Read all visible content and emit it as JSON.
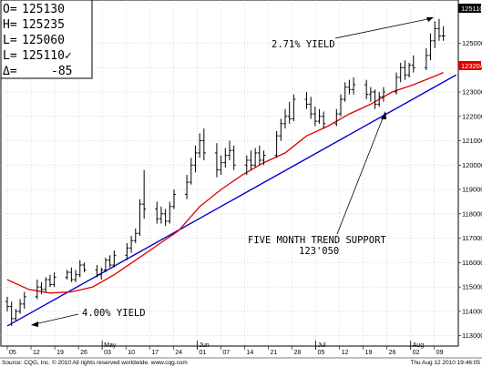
{
  "ohlc_box": [
    {
      "key": "O=",
      "value": "125130"
    },
    {
      "key": "H=",
      "value": "125235"
    },
    {
      "key": "L=",
      "value": "125060"
    },
    {
      "key": "L=",
      "value": "125110✓"
    },
    {
      "key": "Δ=",
      "value": "-85"
    }
  ],
  "footer": {
    "left": "Source: CQG, Inc. © 2010 All rights reserved worldwide. www.cqg.com",
    "right": "Thu Aug 12 2010 19:46:05"
  },
  "colors": {
    "price": "#000000",
    "moving_average": "#e00000",
    "trend_line": "#0000cc",
    "last_price_box": "#000000",
    "ma_price_box": "#e00000"
  },
  "chart_data": {
    "type": "line",
    "y_tick_labels": [
      "113000",
      "114000",
      "115000",
      "116000",
      "117000",
      "118000",
      "119000",
      "120000",
      "121000",
      "122000",
      "123000",
      "124000",
      "125000"
    ],
    "y_range": [
      112650,
      126700
    ],
    "x_tick_labels": [
      "05",
      "12",
      "19",
      "26",
      "03",
      "10",
      "17",
      "24",
      "01",
      "07",
      "14",
      "21",
      "28",
      "05",
      "12",
      "19",
      "26",
      "02",
      "09"
    ],
    "month_labels": [
      {
        "label": "May",
        "at": "03"
      },
      {
        "label": "Jun",
        "at": "01"
      },
      {
        "label": "Jul",
        "at": "05"
      },
      {
        "label": "Aug",
        "at": "02"
      }
    ],
    "last_price_label": "125110",
    "moving_average_label": "123204",
    "annotations": [
      {
        "text": "2.71% YIELD"
      },
      {
        "text": "FIVE MONTH TREND SUPPORT"
      },
      {
        "text": "123'050"
      },
      {
        "text": "4.00% YIELD"
      }
    ],
    "trend_line": {
      "start": {
        "day": 0,
        "value": 113400
      },
      "end": {
        "day": 105,
        "value": 123700
      }
    },
    "series": [
      {
        "kind": "ohlc",
        "bars": [
          [
            0,
            114400,
            114600,
            114000,
            114200
          ],
          [
            1,
            114200,
            114400,
            113400,
            113700
          ],
          [
            2,
            113700,
            114100,
            113600,
            114000
          ],
          [
            3,
            114000,
            114500,
            113900,
            114300
          ],
          [
            4,
            114300,
            114800,
            114100,
            114600
          ],
          [
            7,
            114600,
            115300,
            114500,
            115000
          ],
          [
            8,
            115000,
            115200,
            114700,
            114900
          ],
          [
            9,
            114900,
            115400,
            114800,
            115300
          ],
          [
            10,
            115300,
            115500,
            115000,
            115100
          ],
          [
            11,
            115100,
            115600,
            115000,
            115400
          ],
          [
            14,
            115400,
            115700,
            115300,
            115600
          ],
          [
            15,
            115600,
            115800,
            115200,
            115300
          ],
          [
            16,
            115300,
            115700,
            115200,
            115500
          ],
          [
            17,
            115500,
            116100,
            115400,
            115900
          ],
          [
            18,
            115900,
            116000,
            115600,
            115700
          ],
          [
            21,
            115700,
            115900,
            115400,
            115500
          ],
          [
            22,
            115500,
            115800,
            115300,
            115700
          ],
          [
            23,
            115700,
            116200,
            115600,
            116100
          ],
          [
            24,
            116100,
            116300,
            115800,
            115900
          ],
          [
            25,
            115900,
            116500,
            115800,
            116300
          ],
          [
            28,
            116300,
            116800,
            116100,
            116600
          ],
          [
            29,
            116600,
            117100,
            116400,
            116900
          ],
          [
            30,
            116900,
            117400,
            116800,
            117200
          ],
          [
            31,
            117200,
            118600,
            117100,
            118400
          ],
          [
            32,
            118400,
            119800,
            117800,
            118200
          ],
          [
            35,
            118200,
            118500,
            117600,
            117800
          ],
          [
            36,
            117800,
            118300,
            117600,
            118000
          ],
          [
            37,
            118000,
            118200,
            117500,
            117700
          ],
          [
            38,
            117700,
            118500,
            117600,
            118300
          ],
          [
            39,
            118300,
            119000,
            118200,
            118800
          ],
          [
            42,
            118800,
            119600,
            118600,
            119300
          ],
          [
            43,
            119300,
            120300,
            119200,
            120000
          ],
          [
            44,
            120000,
            120800,
            119700,
            120500
          ],
          [
            45,
            120500,
            121300,
            120300,
            121000
          ],
          [
            46,
            121000,
            121500,
            120200,
            120500
          ],
          [
            49,
            120500,
            120900,
            119500,
            119800
          ],
          [
            50,
            119800,
            120400,
            119600,
            120100
          ],
          [
            51,
            120100,
            120700,
            119900,
            120400
          ],
          [
            52,
            120400,
            121000,
            120200,
            120600
          ],
          [
            53,
            120600,
            120800,
            119800,
            120000
          ],
          [
            56,
            120000,
            120400,
            119600,
            120200
          ],
          [
            57,
            120200,
            120600,
            119800,
            120000
          ],
          [
            58,
            120000,
            120700,
            119900,
            120500
          ],
          [
            59,
            120500,
            120800,
            120000,
            120200
          ],
          [
            60,
            120200,
            120600,
            120000,
            120400
          ],
          [
            63,
            120400,
            121400,
            120300,
            121200
          ],
          [
            64,
            121200,
            121900,
            121000,
            121700
          ],
          [
            65,
            121700,
            122300,
            121500,
            122000
          ],
          [
            66,
            122000,
            122600,
            121700,
            121900
          ],
          [
            67,
            121900,
            122900,
            121800,
            122700
          ],
          [
            70,
            122700,
            123000,
            122300,
            122500
          ],
          [
            71,
            122500,
            122800,
            121900,
            122100
          ],
          [
            72,
            122100,
            122400,
            121600,
            121800
          ],
          [
            73,
            121800,
            122300,
            121700,
            122000
          ],
          [
            74,
            122000,
            122200,
            121500,
            121700
          ],
          [
            77,
            121700,
            122300,
            121600,
            122100
          ],
          [
            78,
            122100,
            122900,
            122000,
            122700
          ],
          [
            79,
            122700,
            123400,
            122600,
            123200
          ],
          [
            80,
            123200,
            123500,
            122900,
            123100
          ],
          [
            81,
            123100,
            123600,
            122900,
            123300
          ],
          [
            84,
            123300,
            123500,
            122700,
            122900
          ],
          [
            85,
            122900,
            123200,
            122600,
            123000
          ],
          [
            86,
            123000,
            123100,
            122300,
            122500
          ],
          [
            87,
            122500,
            123000,
            122400,
            122800
          ],
          [
            88,
            122800,
            123200,
            122600,
            123000
          ],
          [
            91,
            123000,
            123800,
            122900,
            123600
          ],
          [
            92,
            123600,
            124200,
            123400,
            124000
          ],
          [
            93,
            124000,
            124300,
            123500,
            123700
          ],
          [
            94,
            123700,
            124200,
            123600,
            124100
          ],
          [
            95,
            124100,
            124500,
            123800,
            124000
          ],
          [
            98,
            124000,
            124800,
            123900,
            124500
          ],
          [
            99,
            124500,
            125400,
            124300,
            125100
          ],
          [
            100,
            125100,
            125900,
            124800,
            125600
          ],
          [
            101,
            125600,
            126000,
            125100,
            125300
          ],
          [
            102,
            125300,
            125700,
            125100,
            125300
          ]
        ]
      },
      {
        "kind": "moving_average",
        "points": [
          [
            0,
            115300
          ],
          [
            5,
            114900
          ],
          [
            10,
            114750
          ],
          [
            15,
            114800
          ],
          [
            20,
            115000
          ],
          [
            25,
            115500
          ],
          [
            30,
            116100
          ],
          [
            35,
            116700
          ],
          [
            40,
            117300
          ],
          [
            45,
            118300
          ],
          [
            50,
            119000
          ],
          [
            55,
            119600
          ],
          [
            60,
            120100
          ],
          [
            65,
            120500
          ],
          [
            70,
            121200
          ],
          [
            75,
            121600
          ],
          [
            80,
            122100
          ],
          [
            85,
            122500
          ],
          [
            90,
            123000
          ],
          [
            95,
            123300
          ],
          [
            100,
            123650
          ],
          [
            102,
            123800
          ]
        ]
      }
    ]
  }
}
